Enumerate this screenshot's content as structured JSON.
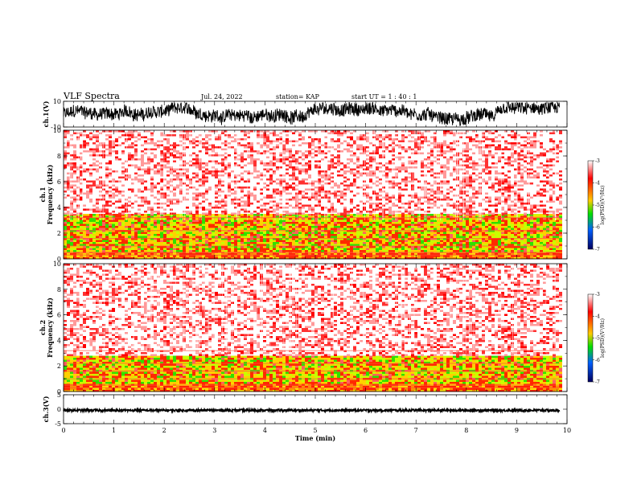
{
  "header": {
    "title": "VLF Spectra",
    "date": "Jul. 24, 2022",
    "station": "station= KAP",
    "start": "start  UT =   1 : 40 : 1"
  },
  "chart_data": [
    {
      "type": "line",
      "panel": "ch1-waveform",
      "ylabel": "ch.1(V)",
      "ylim": [
        -10,
        10
      ],
      "yticks": [
        "10",
        "-10"
      ],
      "x_range": [
        0,
        9.85
      ],
      "amplitude_range": [
        -9,
        9
      ],
      "color": "#000000"
    },
    {
      "type": "heatmap",
      "panel": "ch1-spectrogram",
      "ylabel": "ch.1\nFrequency  (kHz)",
      "ylabel_lines": [
        "ch.1",
        "Frequency  (kHz)"
      ],
      "ylim": [
        0,
        10
      ],
      "yticks": [
        "0",
        "2",
        "4",
        "6",
        "8",
        "10"
      ],
      "bands": [
        {
          "from": 0,
          "to": 0.6,
          "level": "red-yellow"
        },
        {
          "from": 0.6,
          "to": 3.5,
          "level": "yellow-green"
        },
        {
          "from": 3.5,
          "to": 10,
          "level": "red-speckled"
        }
      ],
      "colorbar": {
        "label": "log(PSD)(V²/Hz)",
        "range": [
          -7,
          -3
        ],
        "ticks": [
          "-3",
          "-4",
          "-5",
          "-6",
          "-7"
        ]
      }
    },
    {
      "type": "heatmap",
      "panel": "ch2-spectrogram",
      "ylabel": "ch.2\nFrequency  (kHz)",
      "ylabel_lines": [
        "ch.2",
        "Frequency  (kHz)"
      ],
      "ylim": [
        0,
        10
      ],
      "yticks": [
        "0",
        "2",
        "4",
        "6",
        "8",
        "10"
      ],
      "bands": [
        {
          "from": 0,
          "to": 0.6,
          "level": "red-yellow"
        },
        {
          "from": 0.6,
          "to": 2.8,
          "level": "yellow-green"
        },
        {
          "from": 2.8,
          "to": 10,
          "level": "red-speckled"
        }
      ],
      "colorbar": {
        "label": "log(PSD)(V²/Hz)",
        "range": [
          -7,
          -3
        ],
        "ticks": [
          "-3",
          "-4",
          "-5",
          "-6",
          "-7"
        ]
      }
    },
    {
      "type": "line",
      "panel": "ch3-waveform",
      "ylabel": "ch.3(V)",
      "ylim": [
        -5,
        5
      ],
      "yticks": [
        "5",
        "0",
        "-5"
      ],
      "x_range": [
        0,
        9.85
      ],
      "amplitude_range": [
        -0.8,
        0.0
      ],
      "color": "#000000"
    }
  ],
  "xaxis": {
    "label": "Time  (min)",
    "range": [
      0,
      10
    ],
    "ticks": [
      "0",
      "1",
      "2",
      "3",
      "4",
      "5",
      "6",
      "7",
      "8",
      "9",
      "10"
    ]
  }
}
